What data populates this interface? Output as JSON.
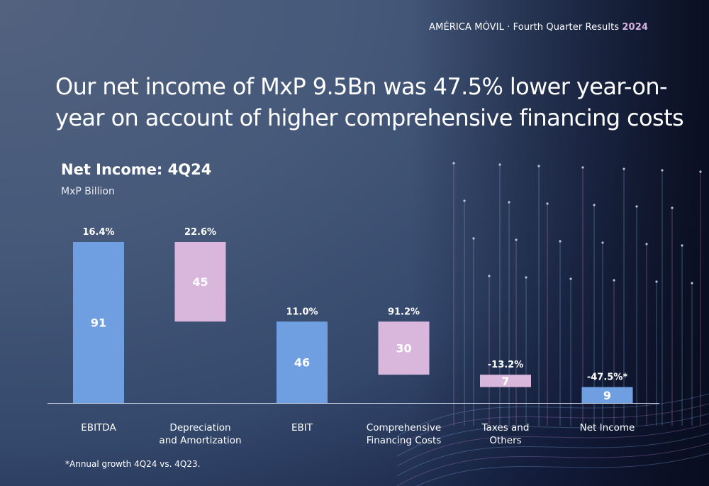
{
  "header": {
    "company": "AMÉRICA MÓVIL · Fourth Quarter Results",
    "year": "2024"
  },
  "headline": "Our net income of MxP 9.5Bn was 47.5% lower year-on-year on account of higher comprehensive financing costs",
  "footnote": "*Annual growth 4Q24 vs. 4Q23.",
  "colors": {
    "total": "#6f9fe0",
    "deduction": "#d9b6dc",
    "text": "#ffffff"
  },
  "chart_data": {
    "type": "bar",
    "subtype": "waterfall",
    "title": "Net Income: 4Q24",
    "subtitle": "MxP Billion",
    "categories": [
      "EBITDA",
      "Depreciation\nand Amortization",
      "EBIT",
      "Comprehensive\nFinancing Costs",
      "Taxes and\nOthers",
      "Net Income"
    ],
    "values": [
      91,
      45,
      46,
      30,
      7,
      9
    ],
    "value_labels": [
      "91",
      "45",
      "46",
      "30",
      "7",
      "9"
    ],
    "growth_labels": [
      "16.4%",
      "22.6%",
      "11.0%",
      "91.2%",
      "-13.2%",
      "-47.5%*"
    ],
    "kinds": [
      "total",
      "decrease",
      "total",
      "decrease",
      "decrease",
      "total"
    ],
    "ylim": [
      0,
      91
    ],
    "xlabel": "",
    "ylabel": "",
    "legend": "none",
    "grid": false
  }
}
